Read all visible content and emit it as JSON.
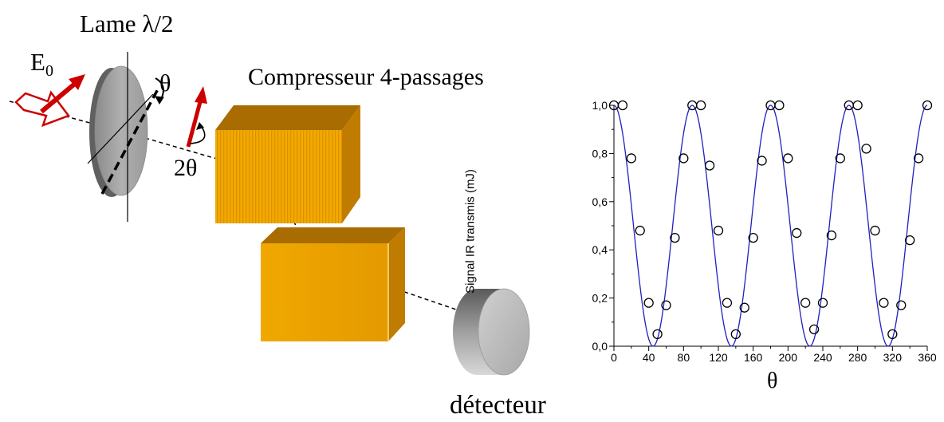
{
  "diagram": {
    "waveplate_label": "Lame λ/2",
    "field_label_main": "E",
    "field_label_sub": "0",
    "angle_label": "θ",
    "double_angle_label": "2θ",
    "compressor_label": "Compresseur 4-passages",
    "detector_label": "détecteur",
    "colors": {
      "arrow": "#cc0000",
      "compressor": "#e8a000",
      "plate": "#a8a8a8"
    }
  },
  "chart_data": {
    "type": "scatter",
    "xlabel": "θ",
    "ylabel": "Signal IR transmis (mJ)",
    "xlim": [
      0,
      360
    ],
    "ylim": [
      0,
      1.0
    ],
    "xticks": [
      "0",
      "40",
      "80",
      "120",
      "160",
      "200",
      "240",
      "280",
      "320",
      "360"
    ],
    "yticks": [
      "0,0",
      "0,2",
      "0,4",
      "0,6",
      "0,8",
      "1,0"
    ],
    "grid": false,
    "series": [
      {
        "kind": "points",
        "marker": "open-circle",
        "x": [
          0,
          10,
          20,
          30,
          40,
          50,
          60,
          70,
          80,
          90,
          100,
          110,
          120,
          130,
          140,
          150,
          160,
          170,
          180,
          190,
          200,
          210,
          220,
          230,
          240,
          250,
          260,
          270,
          280,
          290,
          300,
          310,
          320,
          330,
          340,
          350,
          360
        ],
        "y": [
          1.0,
          1.0,
          0.78,
          0.48,
          0.18,
          0.05,
          0.17,
          0.45,
          0.78,
          1.0,
          1.0,
          0.75,
          0.48,
          0.18,
          0.05,
          0.16,
          0.45,
          0.77,
          1.0,
          1.0,
          0.78,
          0.47,
          0.18,
          0.07,
          0.18,
          0.46,
          0.78,
          1.0,
          1.0,
          0.82,
          0.48,
          0.18,
          0.05,
          0.17,
          0.44,
          0.78,
          1.0
        ]
      },
      {
        "kind": "line",
        "color": "#2020c0",
        "function": "cos^2(2θ)",
        "x": [
          0,
          22.5,
          45,
          67.5,
          90,
          112.5,
          135,
          157.5,
          180,
          202.5,
          225,
          247.5,
          270,
          292.5,
          315,
          337.5,
          360
        ],
        "y": [
          1.0,
          0.5,
          0.0,
          0.5,
          1.0,
          0.5,
          0.0,
          0.5,
          1.0,
          0.5,
          0.0,
          0.5,
          1.0,
          0.5,
          0.0,
          0.5,
          1.0
        ]
      }
    ]
  }
}
